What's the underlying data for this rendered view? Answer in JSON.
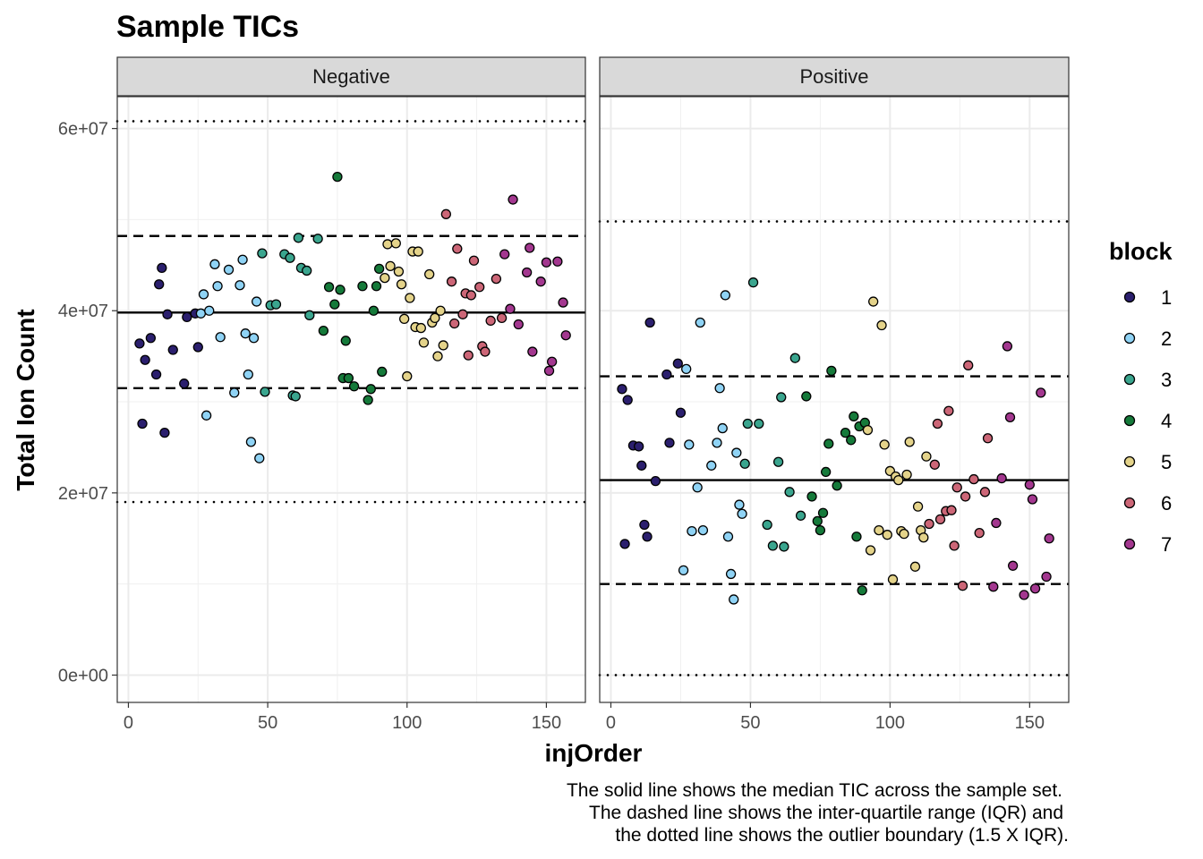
{
  "chart_data": {
    "type": "scatter",
    "title": "Sample TICs",
    "xlabel": "injOrder",
    "ylabel": "Total Ion Count",
    "xlim": [
      -4,
      164
    ],
    "ylim": [
      -3000000,
      63500000
    ],
    "x_ticks": [
      0,
      50,
      100,
      150
    ],
    "x_tick_labels": [
      "0",
      "50",
      "100",
      "150"
    ],
    "y_ticks": [
      0,
      20000000,
      40000000,
      60000000
    ],
    "y_tick_labels": [
      "0e+00",
      "2e+07",
      "4e+07",
      "6e+07"
    ],
    "grid": true,
    "legend": {
      "title": "block",
      "position": "right",
      "entries": [
        {
          "label": "1",
          "color": "#2b1f6e"
        },
        {
          "label": "2",
          "color": "#8fd3f5"
        },
        {
          "label": "3",
          "color": "#3aa58e"
        },
        {
          "label": "4",
          "color": "#157a3a"
        },
        {
          "label": "5",
          "color": "#e4d38a"
        },
        {
          "label": "6",
          "color": "#cc6677"
        },
        {
          "label": "7",
          "color": "#a3378f"
        }
      ]
    },
    "caption": [
      "The solid line shows the median TIC across the sample set.",
      "The dashed line shows the inter-quartile range (IQR) and",
      "the dotted line shows the outlier boundary (1.5 X IQR)."
    ],
    "panels": [
      {
        "name": "Negative",
        "median": 39800000,
        "iqr": [
          31500000,
          48200000
        ],
        "outlier_bounds": [
          19000000,
          60800000
        ],
        "points": [
          [
            4,
            36400000,
            1
          ],
          [
            5,
            27600000,
            1
          ],
          [
            6,
            34600000,
            1
          ],
          [
            8,
            37000000,
            1
          ],
          [
            10,
            33000000,
            1
          ],
          [
            11,
            42900000,
            1
          ],
          [
            12,
            44700000,
            1
          ],
          [
            13,
            26600000,
            1
          ],
          [
            14,
            39600000,
            1
          ],
          [
            16,
            35700000,
            1
          ],
          [
            20,
            32000000,
            1
          ],
          [
            21,
            39300000,
            1
          ],
          [
            24,
            39700000,
            1
          ],
          [
            25,
            36000000,
            1
          ],
          [
            26,
            39700000,
            2
          ],
          [
            27,
            41800000,
            2
          ],
          [
            28,
            28500000,
            2
          ],
          [
            29,
            40000000,
            2
          ],
          [
            31,
            45100000,
            2
          ],
          [
            32,
            42700000,
            2
          ],
          [
            33,
            37100000,
            2
          ],
          [
            36,
            44500000,
            2
          ],
          [
            38,
            31000000,
            2
          ],
          [
            40,
            42800000,
            2
          ],
          [
            41,
            45600000,
            2
          ],
          [
            42,
            37500000,
            2
          ],
          [
            43,
            33000000,
            2
          ],
          [
            44,
            25600000,
            2
          ],
          [
            45,
            37000000,
            2
          ],
          [
            46,
            41000000,
            2
          ],
          [
            47,
            23800000,
            2
          ],
          [
            48,
            46300000,
            3
          ],
          [
            49,
            31100000,
            3
          ],
          [
            51,
            40600000,
            3
          ],
          [
            53,
            40700000,
            3
          ],
          [
            56,
            46200000,
            3
          ],
          [
            58,
            45800000,
            3
          ],
          [
            59,
            30700000,
            3
          ],
          [
            60,
            30600000,
            3
          ],
          [
            61,
            48000000,
            3
          ],
          [
            62,
            44700000,
            3
          ],
          [
            64,
            44400000,
            3
          ],
          [
            65,
            39500000,
            3
          ],
          [
            68,
            47900000,
            3
          ],
          [
            70,
            37800000,
            4
          ],
          [
            72,
            42600000,
            4
          ],
          [
            74,
            40700000,
            4
          ],
          [
            75,
            54700000,
            4
          ],
          [
            76,
            42300000,
            4
          ],
          [
            77,
            32600000,
            4
          ],
          [
            78,
            36700000,
            4
          ],
          [
            79,
            32600000,
            4
          ],
          [
            81,
            31700000,
            4
          ],
          [
            84,
            42700000,
            4
          ],
          [
            86,
            30200000,
            4
          ],
          [
            87,
            31400000,
            4
          ],
          [
            88,
            40000000,
            4
          ],
          [
            89,
            42700000,
            4
          ],
          [
            90,
            44600000,
            4
          ],
          [
            91,
            33300000,
            4
          ],
          [
            92,
            43600000,
            5
          ],
          [
            93,
            47300000,
            5
          ],
          [
            94,
            44900000,
            5
          ],
          [
            96,
            47400000,
            5
          ],
          [
            97,
            44300000,
            5
          ],
          [
            98,
            42900000,
            5
          ],
          [
            99,
            39100000,
            5
          ],
          [
            100,
            32800000,
            5
          ],
          [
            101,
            41400000,
            5
          ],
          [
            102,
            46500000,
            5
          ],
          [
            103,
            38200000,
            5
          ],
          [
            104,
            46500000,
            5
          ],
          [
            105,
            38100000,
            5
          ],
          [
            106,
            36500000,
            5
          ],
          [
            108,
            44000000,
            5
          ],
          [
            109,
            38700000,
            5
          ],
          [
            110,
            39200000,
            5
          ],
          [
            111,
            35000000,
            5
          ],
          [
            112,
            40000000,
            5
          ],
          [
            113,
            36200000,
            5
          ],
          [
            114,
            50600000,
            6
          ],
          [
            116,
            43200000,
            6
          ],
          [
            117,
            38600000,
            6
          ],
          [
            118,
            46800000,
            6
          ],
          [
            120,
            39600000,
            6
          ],
          [
            121,
            41900000,
            6
          ],
          [
            122,
            35100000,
            6
          ],
          [
            123,
            41700000,
            6
          ],
          [
            124,
            45500000,
            6
          ],
          [
            126,
            42600000,
            6
          ],
          [
            127,
            36100000,
            6
          ],
          [
            128,
            35500000,
            6
          ],
          [
            130,
            38900000,
            6
          ],
          [
            132,
            43500000,
            6
          ],
          [
            134,
            39200000,
            6
          ],
          [
            135,
            46200000,
            7
          ],
          [
            137,
            40200000,
            7
          ],
          [
            138,
            52200000,
            7
          ],
          [
            140,
            38500000,
            7
          ],
          [
            143,
            44200000,
            7
          ],
          [
            144,
            46900000,
            7
          ],
          [
            145,
            35500000,
            7
          ],
          [
            148,
            43200000,
            7
          ],
          [
            150,
            45300000,
            7
          ],
          [
            151,
            33400000,
            7
          ],
          [
            152,
            34400000,
            7
          ],
          [
            154,
            45400000,
            7
          ],
          [
            156,
            40900000,
            7
          ],
          [
            157,
            37300000,
            7
          ]
        ]
      },
      {
        "name": "Positive",
        "median": 21400000,
        "iqr": [
          10000000,
          32800000
        ],
        "outlier_bounds": [
          0,
          49800000
        ],
        "points": [
          [
            4,
            31400000,
            1
          ],
          [
            5,
            14400000,
            1
          ],
          [
            6,
            30200000,
            1
          ],
          [
            8,
            25200000,
            1
          ],
          [
            10,
            25100000,
            1
          ],
          [
            11,
            23000000,
            1
          ],
          [
            12,
            16500000,
            1
          ],
          [
            13,
            15200000,
            1
          ],
          [
            14,
            38700000,
            1
          ],
          [
            16,
            21300000,
            1
          ],
          [
            20,
            33000000,
            1
          ],
          [
            21,
            25500000,
            1
          ],
          [
            24,
            34200000,
            1
          ],
          [
            25,
            28800000,
            1
          ],
          [
            26,
            11500000,
            2
          ],
          [
            27,
            33600000,
            2
          ],
          [
            28,
            25300000,
            2
          ],
          [
            29,
            15800000,
            2
          ],
          [
            31,
            20600000,
            2
          ],
          [
            32,
            38700000,
            2
          ],
          [
            33,
            15900000,
            2
          ],
          [
            36,
            23000000,
            2
          ],
          [
            38,
            25500000,
            2
          ],
          [
            39,
            31500000,
            2
          ],
          [
            40,
            27100000,
            2
          ],
          [
            41,
            41700000,
            2
          ],
          [
            42,
            15200000,
            2
          ],
          [
            43,
            11100000,
            2
          ],
          [
            44,
            8300000,
            2
          ],
          [
            45,
            24400000,
            2
          ],
          [
            46,
            18700000,
            2
          ],
          [
            47,
            17700000,
            2
          ],
          [
            48,
            23200000,
            3
          ],
          [
            49,
            27600000,
            3
          ],
          [
            51,
            43100000,
            3
          ],
          [
            53,
            27600000,
            3
          ],
          [
            56,
            16500000,
            3
          ],
          [
            58,
            14200000,
            3
          ],
          [
            60,
            23400000,
            3
          ],
          [
            61,
            30500000,
            3
          ],
          [
            62,
            14100000,
            3
          ],
          [
            64,
            20100000,
            3
          ],
          [
            66,
            34800000,
            3
          ],
          [
            68,
            17500000,
            3
          ],
          [
            70,
            30600000,
            4
          ],
          [
            72,
            19600000,
            4
          ],
          [
            74,
            16900000,
            4
          ],
          [
            75,
            15900000,
            4
          ],
          [
            76,
            17800000,
            4
          ],
          [
            77,
            22300000,
            4
          ],
          [
            78,
            25400000,
            4
          ],
          [
            79,
            33400000,
            4
          ],
          [
            81,
            20800000,
            4
          ],
          [
            84,
            26600000,
            4
          ],
          [
            86,
            25800000,
            4
          ],
          [
            87,
            28400000,
            4
          ],
          [
            88,
            15200000,
            4
          ],
          [
            89,
            27300000,
            4
          ],
          [
            90,
            9300000,
            4
          ],
          [
            91,
            27700000,
            4
          ],
          [
            92,
            26900000,
            5
          ],
          [
            93,
            13700000,
            5
          ],
          [
            94,
            41000000,
            5
          ],
          [
            96,
            15900000,
            5
          ],
          [
            97,
            38400000,
            5
          ],
          [
            98,
            25300000,
            5
          ],
          [
            99,
            15400000,
            5
          ],
          [
            100,
            22400000,
            5
          ],
          [
            101,
            10500000,
            5
          ],
          [
            102,
            21800000,
            5
          ],
          [
            103,
            21400000,
            5
          ],
          [
            104,
            15800000,
            5
          ],
          [
            105,
            15500000,
            5
          ],
          [
            106,
            22000000,
            5
          ],
          [
            107,
            25600000,
            5
          ],
          [
            109,
            11900000,
            5
          ],
          [
            110,
            18500000,
            5
          ],
          [
            111,
            15900000,
            5
          ],
          [
            112,
            15100000,
            5
          ],
          [
            113,
            24000000,
            5
          ],
          [
            114,
            16600000,
            6
          ],
          [
            116,
            23100000,
            6
          ],
          [
            117,
            27600000,
            6
          ],
          [
            118,
            17100000,
            6
          ],
          [
            120,
            18000000,
            6
          ],
          [
            121,
            29000000,
            6
          ],
          [
            122,
            18100000,
            6
          ],
          [
            123,
            14200000,
            6
          ],
          [
            124,
            20600000,
            6
          ],
          [
            126,
            9800000,
            6
          ],
          [
            127,
            19600000,
            6
          ],
          [
            128,
            34000000,
            6
          ],
          [
            130,
            21500000,
            6
          ],
          [
            132,
            15600000,
            6
          ],
          [
            134,
            20100000,
            6
          ],
          [
            135,
            26000000,
            6
          ],
          [
            137,
            9700000,
            7
          ],
          [
            138,
            16700000,
            7
          ],
          [
            140,
            21600000,
            7
          ],
          [
            142,
            36100000,
            7
          ],
          [
            143,
            28300000,
            7
          ],
          [
            144,
            12000000,
            7
          ],
          [
            148,
            8800000,
            7
          ],
          [
            150,
            20900000,
            7
          ],
          [
            151,
            19300000,
            7
          ],
          [
            152,
            9500000,
            7
          ],
          [
            154,
            31000000,
            7
          ],
          [
            156,
            10800000,
            7
          ],
          [
            157,
            15000000,
            7
          ]
        ]
      }
    ]
  }
}
